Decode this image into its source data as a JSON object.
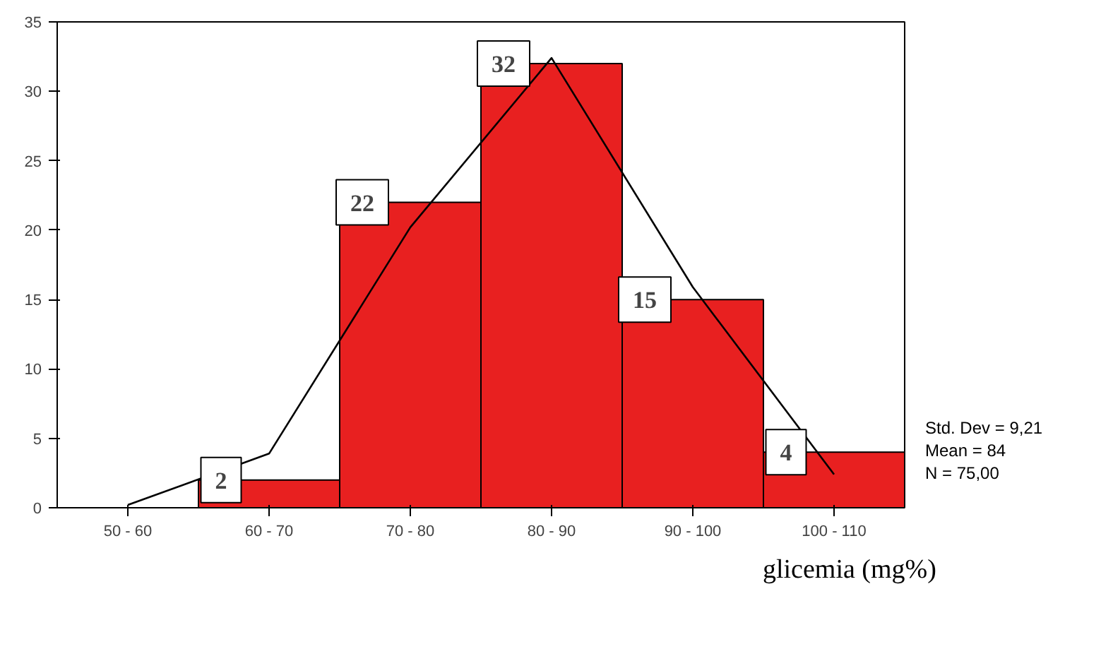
{
  "chart_data": {
    "type": "bar",
    "xlabel": "glicemia (mg%)",
    "categories": [
      "50 - 60",
      "60 - 70",
      "70 - 80",
      "80 - 90",
      "90 - 100",
      "100 - 110"
    ],
    "series": [
      {
        "color": "#e82020",
        "values": [
          0,
          2,
          22,
          32,
          15,
          4
        ],
        "value_labels": [
          null,
          "2",
          "22",
          "32",
          "15",
          "4"
        ]
      },
      {
        "type": "line",
        "color": "#000000",
        "values": [
          0.2,
          3.9,
          20.2,
          32.4,
          15.9,
          2.4
        ]
      }
    ],
    "ylim": [
      0,
      35
    ],
    "yticks": [
      0,
      5,
      10,
      15,
      20,
      25,
      30,
      35
    ],
    "grid": false,
    "annotations": [
      "Std. Dev = 9,21",
      "Mean = 84",
      "N = 75,00"
    ]
  }
}
